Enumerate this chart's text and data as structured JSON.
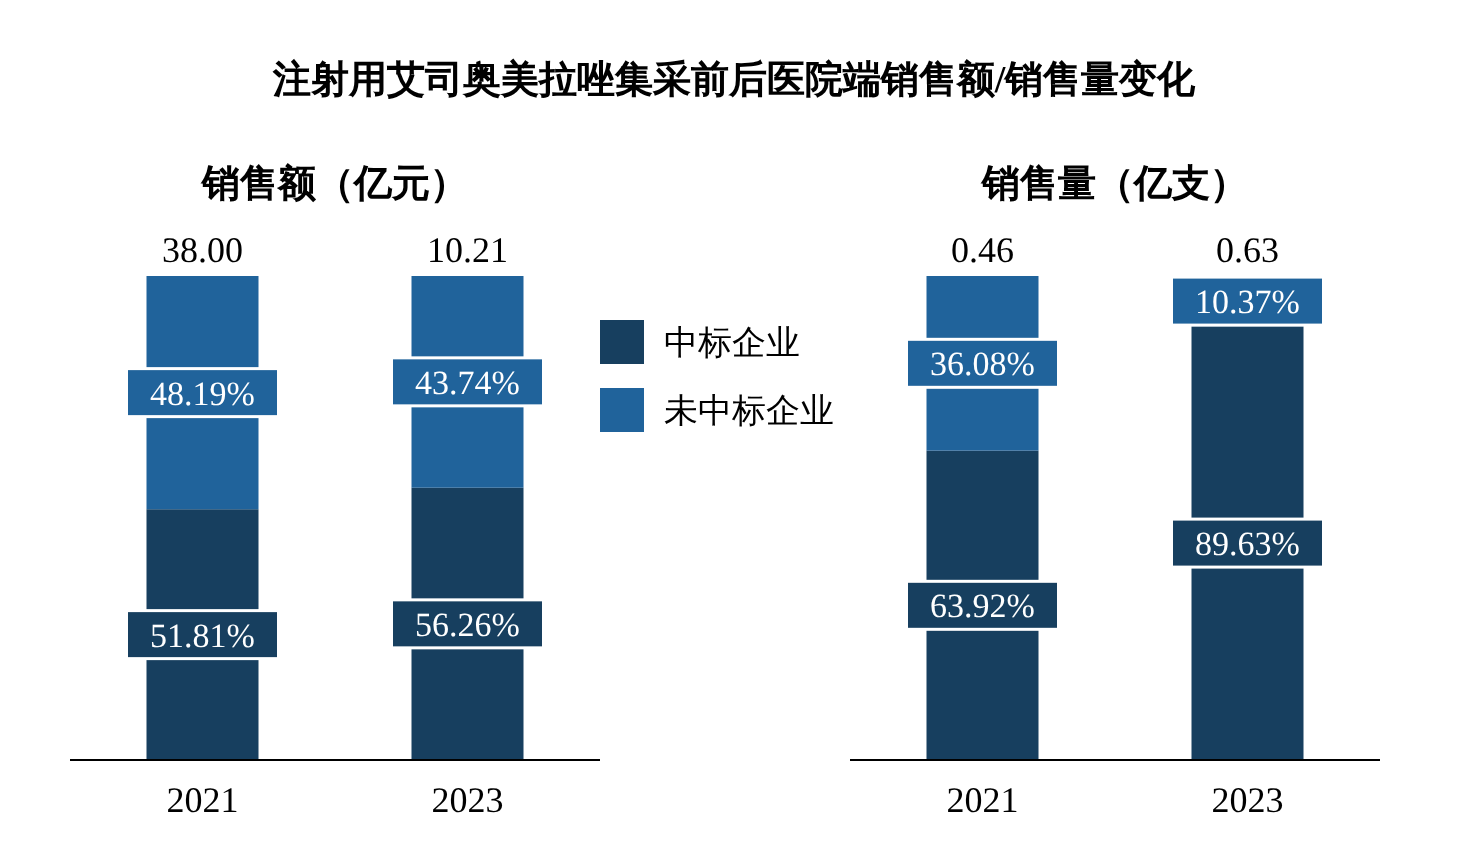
{
  "chart_data": [
    {
      "type": "bar",
      "stacked": true,
      "title": "注射用艾司奥美拉唑集采前后医院端销售额/销售量变化",
      "subtitle": "销售额（亿元）",
      "categories": [
        "2021",
        "2023"
      ],
      "legend": "right",
      "series": [
        {
          "name": "中标企业",
          "color": "#173f5f",
          "values": [
            51.81,
            56.26
          ],
          "value_labels": [
            "51.81%",
            "56.26%"
          ]
        },
        {
          "name": "未中标企业",
          "color": "#20639b",
          "values": [
            48.19,
            43.74
          ],
          "value_labels": [
            "48.19%",
            "43.74%"
          ]
        }
      ],
      "annotations": [
        {
          "text": "38.00",
          "x": "2021",
          "y": 100
        },
        {
          "text": "10.21",
          "x": "2023",
          "y": 100
        }
      ]
    },
    {
      "type": "bar",
      "stacked": true,
      "subtitle": "销售量（亿支）",
      "categories": [
        "2021",
        "2023"
      ],
      "series": [
        {
          "color": "#173f5f",
          "values": [
            63.92,
            89.63
          ],
          "value_labels": [
            "63.92%",
            "89.63%"
          ]
        },
        {
          "color": "#20639b",
          "values": [
            36.08,
            10.37
          ],
          "value_labels": [
            "36.08%",
            "10.37%"
          ]
        }
      ],
      "annotations": [
        {
          "text": "0.46",
          "x": "2021",
          "y": 100
        },
        {
          "text": "0.63",
          "x": "2023",
          "y": 100
        }
      ]
    }
  ]
}
